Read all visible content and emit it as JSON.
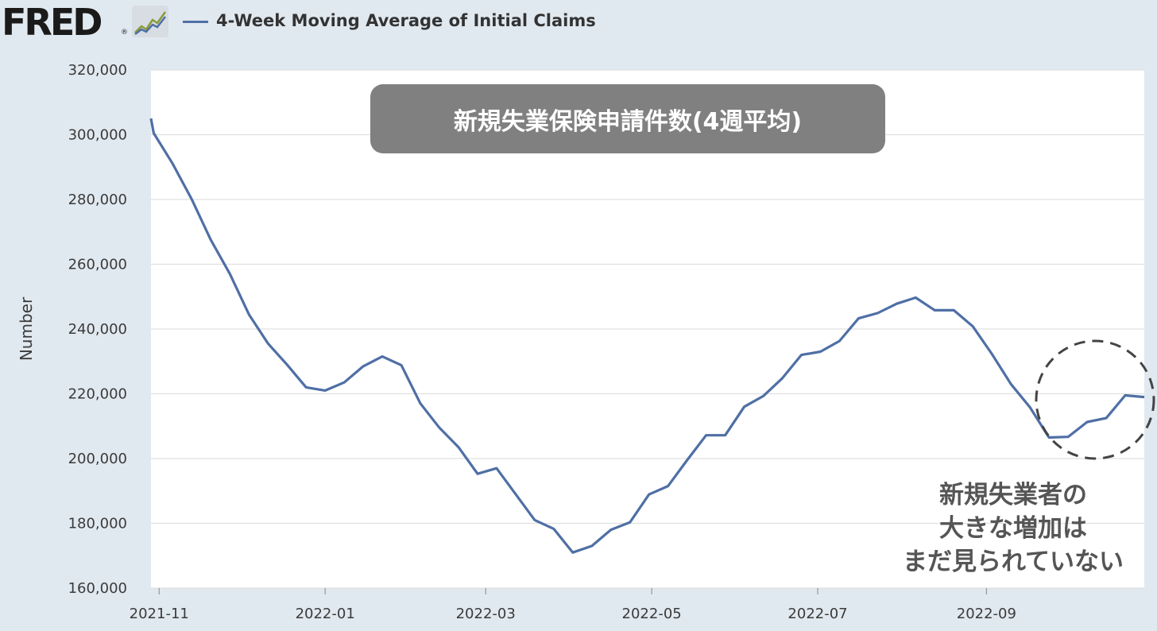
{
  "header": {
    "logo_text": "FRED",
    "logo_reg": "®",
    "legend_label": "4-Week Moving Average of Initial Claims"
  },
  "annotations": {
    "title": "新規失業保険申請件数(4週平均)",
    "note_lines": [
      "新規失業者の",
      "大きな増加は",
      "まだ見られていない"
    ]
  },
  "colors": {
    "line": "#4f6fa5",
    "background": "#e1e9f0",
    "plot_bg": "#ffffff",
    "title_box": "#808080"
  },
  "chart_data": {
    "type": "line",
    "title": "新規失業保険申請件数(4週平均)",
    "xlabel": "",
    "ylabel": "Number",
    "ylim": [
      160000,
      320000
    ],
    "yticks": [
      160000,
      180000,
      200000,
      220000,
      240000,
      260000,
      280000,
      300000,
      320000
    ],
    "ytick_labels": [
      "160,000",
      "180,000",
      "200,000",
      "220,000",
      "240,000",
      "260,000",
      "280,000",
      "300,000",
      "320,000"
    ],
    "xlim": [
      "2021-10-29",
      "2022-10-29"
    ],
    "xticks": [
      "2021-11-01",
      "2022-01-01",
      "2022-03-01",
      "2022-05-01",
      "2022-07-01",
      "2022-09-01"
    ],
    "xtick_labels": [
      "2021-11",
      "2022-01",
      "2022-03",
      "2022-05",
      "2022-07",
      "2022-09"
    ],
    "grid": true,
    "legend": "top-left",
    "series": [
      {
        "name": "4-Week Moving Average of Initial Claims",
        "x": [
          "2021-10-29",
          "2021-10-30",
          "2021-11-06",
          "2021-11-13",
          "2021-11-20",
          "2021-11-27",
          "2021-12-04",
          "2021-12-11",
          "2021-12-18",
          "2021-12-25",
          "2022-01-01",
          "2022-01-08",
          "2022-01-15",
          "2022-01-22",
          "2022-01-29",
          "2022-02-05",
          "2022-02-12",
          "2022-02-19",
          "2022-02-26",
          "2022-03-05",
          "2022-03-12",
          "2022-03-19",
          "2022-03-26",
          "2022-04-02",
          "2022-04-09",
          "2022-04-16",
          "2022-04-23",
          "2022-04-30",
          "2022-05-07",
          "2022-05-14",
          "2022-05-21",
          "2022-05-28",
          "2022-06-04",
          "2022-06-11",
          "2022-06-18",
          "2022-06-25",
          "2022-07-02",
          "2022-07-09",
          "2022-07-16",
          "2022-07-23",
          "2022-07-30",
          "2022-08-06",
          "2022-08-13",
          "2022-08-20",
          "2022-08-27",
          "2022-09-03",
          "2022-09-10",
          "2022-09-17",
          "2022-09-24",
          "2022-10-01",
          "2022-10-08",
          "2022-10-15",
          "2022-10-22",
          "2022-10-29"
        ],
        "y": [
          305000,
          300500,
          291000,
          280000,
          267500,
          257000,
          244500,
          235500,
          229000,
          222000,
          221000,
          223500,
          228500,
          231500,
          228800,
          217000,
          209500,
          203500,
          195300,
          197000,
          189000,
          181000,
          178300,
          171000,
          173000,
          178000,
          180300,
          188900,
          191500,
          199500,
          207200,
          207200,
          216000,
          219300,
          224800,
          232000,
          233000,
          236300,
          243300,
          244900,
          247800,
          249700,
          245800,
          245800,
          240800,
          232300,
          223000,
          215800,
          206500,
          206700,
          211300,
          212500,
          219500,
          219000
        ]
      }
    ]
  }
}
